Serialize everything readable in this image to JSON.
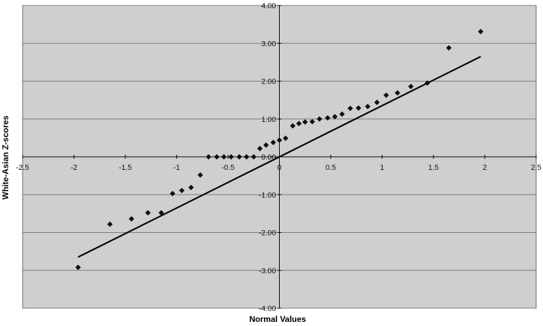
{
  "chart_data": {
    "type": "scatter",
    "title": "",
    "xlabel": "Normal Values",
    "ylabel": "White-Asian Z-scores",
    "xlim": [
      -2.5,
      2.5
    ],
    "ylim": [
      -4.0,
      4.0
    ],
    "x_ticks": [
      -2.5,
      -2,
      -1.5,
      -1,
      -0.5,
      0,
      0.5,
      1,
      1.5,
      2,
      2.5
    ],
    "x_tick_labels": [
      "-2.5",
      "-2",
      "-1.5",
      "-1",
      "-0.5",
      "0",
      "0.5",
      "1",
      "1.5",
      "2",
      "2.5"
    ],
    "y_ticks": [
      4.0,
      3.0,
      2.0,
      1.0,
      0.0,
      -1.0,
      -2.0,
      -3.0,
      -4.0
    ],
    "y_tick_labels": [
      "4.00",
      "3.00",
      "2.00",
      "1.00",
      "0.00",
      "-1.00",
      "-2.00",
      "-3.00",
      "-4.00"
    ],
    "grid": "horizontal",
    "legend": "none",
    "colors": {
      "plot_background": "#cfcfcf",
      "marker": "#111111",
      "line": "#000000",
      "grid": "#7a7a7a"
    },
    "series": [
      {
        "marker": "diamond",
        "points": [
          [
            -1.96,
            -2.92
          ],
          [
            -1.65,
            -1.78
          ],
          [
            -1.44,
            -1.64
          ],
          [
            -1.28,
            -1.48
          ],
          [
            -1.15,
            -1.48
          ],
          [
            -1.04,
            -0.97
          ],
          [
            -0.95,
            -0.89
          ],
          [
            -0.86,
            -0.81
          ],
          [
            -0.77,
            -0.48
          ],
          [
            -0.69,
            0.0
          ],
          [
            -0.61,
            0.0
          ],
          [
            -0.54,
            0.0
          ],
          [
            -0.47,
            0.0
          ],
          [
            -0.39,
            0.0
          ],
          [
            -0.32,
            0.0
          ],
          [
            -0.25,
            0.0
          ],
          [
            -0.19,
            0.22
          ],
          [
            -0.13,
            0.31
          ],
          [
            -0.06,
            0.38
          ],
          [
            0.0,
            0.44
          ],
          [
            0.06,
            0.49
          ],
          [
            0.13,
            0.82
          ],
          [
            0.19,
            0.88
          ],
          [
            0.25,
            0.92
          ],
          [
            0.32,
            0.93
          ],
          [
            0.39,
            1.0
          ],
          [
            0.47,
            1.03
          ],
          [
            0.54,
            1.06
          ],
          [
            0.61,
            1.13
          ],
          [
            0.69,
            1.28
          ],
          [
            0.77,
            1.29
          ],
          [
            0.86,
            1.33
          ],
          [
            0.95,
            1.44
          ],
          [
            1.04,
            1.63
          ],
          [
            1.15,
            1.69
          ],
          [
            1.28,
            1.86
          ],
          [
            1.44,
            1.95
          ],
          [
            1.65,
            2.88
          ],
          [
            1.96,
            3.31
          ]
        ]
      }
    ],
    "reference_line": {
      "from": [
        -1.96,
        -2.65
      ],
      "to": [
        1.96,
        2.65
      ]
    }
  }
}
